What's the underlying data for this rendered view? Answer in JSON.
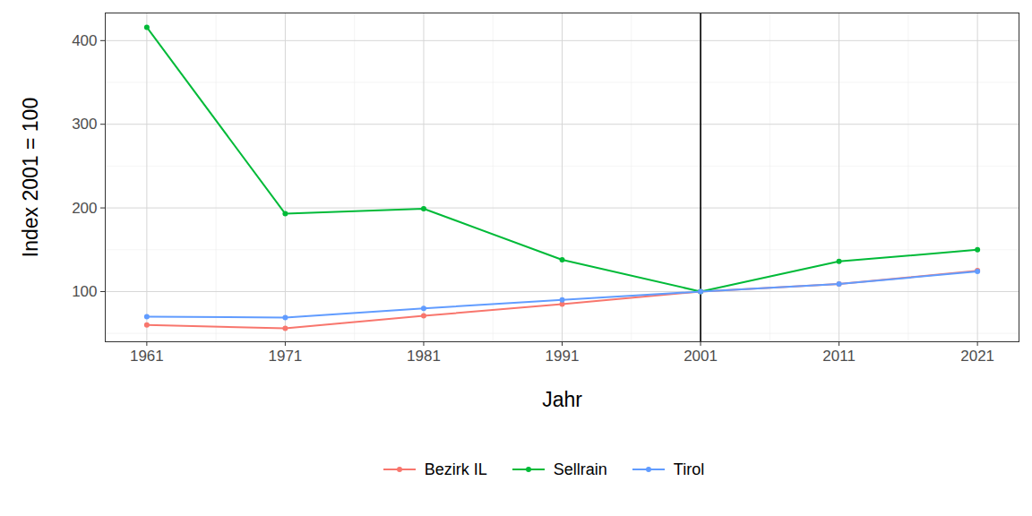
{
  "chart_data": {
    "type": "line",
    "x": [
      1961,
      1971,
      1981,
      1991,
      2001,
      2011,
      2021
    ],
    "series": [
      {
        "name": "Bezirk IL",
        "color": "#F8766D",
        "values": [
          60,
          56,
          71,
          85,
          100,
          109,
          125
        ]
      },
      {
        "name": "Sellrain",
        "color": "#00BA38",
        "values": [
          416,
          193,
          199,
          138,
          100,
          136,
          150
        ]
      },
      {
        "name": "Tirol",
        "color": "#619CFF",
        "values": [
          70,
          69,
          80,
          90,
          100,
          109,
          124
        ]
      }
    ],
    "xlabel": "Jahr",
    "ylabel": "Index 2001 = 100",
    "xlim": [
      1958,
      2024
    ],
    "ylim": [
      40,
      433
    ],
    "xticks": [
      1961,
      1971,
      1981,
      1991,
      2001,
      2011,
      2021
    ],
    "yticks": [
      100,
      200,
      300,
      400
    ],
    "vlines": [
      2001
    ],
    "grid": true,
    "legend": "bottom",
    "marker": "circle"
  }
}
